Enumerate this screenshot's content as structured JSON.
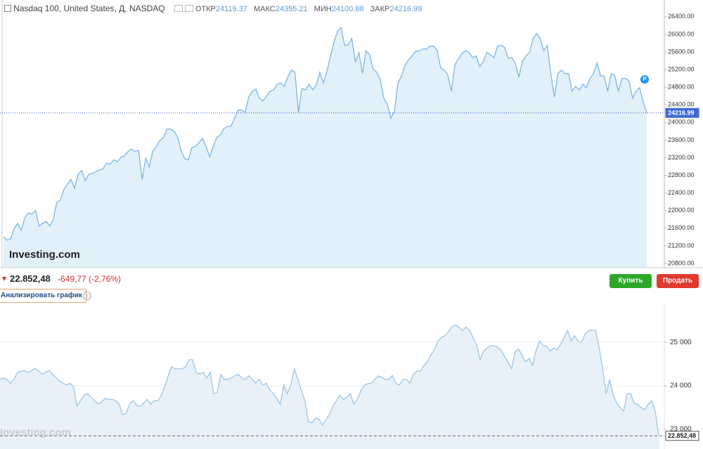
{
  "header": {
    "symbol": "Nasdaq 100, United States, Д, NASDAQ",
    "open_label": "ОТКР",
    "open": 24119.37,
    "high_label": "МАКС",
    "high": 24355.21,
    "low_label": "МИН",
    "low": 24100.88,
    "close_label": "ЗАКР",
    "close": 24216.99,
    "logo": "Investing.com"
  },
  "quote": {
    "price": "22.852,48",
    "change": "-649,77 (-2,76%)"
  },
  "buttons": {
    "buy": "Купить",
    "sell": "Продать",
    "analyze": "Анализировать график"
  },
  "watermark": "Investing.com",
  "chart_data": [
    {
      "type": "area",
      "color": "#7db6e6",
      "fill": "#e2f0fa",
      "grid": false,
      "ylim": [
        20720,
        26780
      ],
      "yticks": [
        {
          "value": 20800,
          "label": "20800.00"
        },
        {
          "value": 21200,
          "label": "21200.00"
        },
        {
          "value": 21600,
          "label": "21600.00"
        },
        {
          "value": 22000,
          "label": "22000.00"
        },
        {
          "value": 22400,
          "label": "22400.00"
        },
        {
          "value": 22800,
          "label": "22800.00"
        },
        {
          "value": 23200,
          "label": "23200.00"
        },
        {
          "value": 23600,
          "label": "23600.00"
        },
        {
          "value": 24000,
          "label": "24000.00"
        },
        {
          "value": 24400,
          "label": "24400.00"
        },
        {
          "value": 24800,
          "label": "24800.00"
        },
        {
          "value": 25200,
          "label": "25200.00"
        },
        {
          "value": 25600,
          "label": "25600.00"
        },
        {
          "value": 26000,
          "label": "26000.00"
        },
        {
          "value": 26400,
          "label": "26400.00"
        }
      ],
      "values": [
        21410,
        21330,
        21360,
        21600,
        21710,
        21550,
        21840,
        21950,
        21920,
        22000,
        21650,
        21710,
        21760,
        21650,
        21810,
        22190,
        22240,
        22480,
        22600,
        22710,
        22510,
        22830,
        22910,
        22680,
        22830,
        22840,
        22890,
        22920,
        22950,
        23080,
        23050,
        23150,
        23110,
        23210,
        23240,
        23340,
        23400,
        23340,
        23370,
        22710,
        23190,
        22990,
        23350,
        23460,
        23590,
        23660,
        23850,
        23850,
        23800,
        23670,
        23350,
        23180,
        23150,
        23430,
        23460,
        23540,
        23640,
        23460,
        23220,
        23460,
        23660,
        23720,
        23860,
        23910,
        23910,
        24100,
        24280,
        24280,
        24230,
        24580,
        24710,
        24760,
        24550,
        24490,
        24600,
        24710,
        24740,
        24870,
        24900,
        24820,
        25030,
        25190,
        25140,
        24230,
        24770,
        24740,
        24870,
        24740,
        24850,
        25140,
        24900,
        25160,
        25510,
        25830,
        26070,
        26150,
        25750,
        25760,
        25910,
        25380,
        25590,
        25110,
        25630,
        25540,
        25220,
        25140,
        24980,
        24550,
        24420,
        24100,
        24260,
        24900,
        25060,
        25300,
        25430,
        25510,
        25620,
        25620,
        25670,
        25670,
        25730,
        25730,
        25650,
        25240,
        25190,
        25090,
        24710,
        25310,
        25440,
        25570,
        25630,
        25590,
        25470,
        25510,
        25270,
        25380,
        25590,
        25540,
        25470,
        25730,
        25760,
        25700,
        25460,
        25470,
        25350,
        25030,
        25380,
        25510,
        25590,
        25910,
        26020,
        25910,
        25630,
        25750,
        25110,
        24580,
        25110,
        25190,
        25110,
        25110,
        24710,
        24820,
        24740,
        24870,
        24790,
        25000,
        25110,
        25350,
        25060,
        25060,
        24710,
        25110,
        25060,
        24710,
        25000,
        25000,
        24950,
        24550,
        24710,
        24790,
        24470,
        24216.99
      ]
    },
    {
      "type": "area",
      "color": "#9cc6e6",
      "fill": "#e9f1f8",
      "grid": true,
      "ylim": [
        22550,
        25760
      ],
      "yticks": [
        {
          "value": 23000,
          "label": "23 000"
        },
        {
          "value": 24000,
          "label": "24 000"
        },
        {
          "value": 25000,
          "label": "25 000"
        }
      ],
      "values": [
        24150,
        24180,
        24150,
        24060,
        24150,
        24310,
        24340,
        24350,
        24310,
        24350,
        24400,
        24340,
        24270,
        24310,
        24350,
        24270,
        24190,
        24110,
        24060,
        24020,
        24060,
        23980,
        23530,
        23660,
        23790,
        23820,
        23740,
        23660,
        23580,
        23630,
        23710,
        23690,
        23690,
        23660,
        23580,
        23340,
        23370,
        23580,
        23660,
        23560,
        23530,
        23600,
        23690,
        23580,
        23660,
        23660,
        23770,
        23980,
        24230,
        24440,
        24390,
        24390,
        24390,
        24440,
        24600,
        24600,
        24310,
        24270,
        24310,
        24180,
        24310,
        23820,
        23850,
        24260,
        24150,
        24150,
        24180,
        24230,
        24270,
        24180,
        24150,
        24230,
        24150,
        24060,
        24150,
        24020,
        24060,
        23900,
        23820,
        23710,
        23580,
        24020,
        23820,
        24020,
        24390,
        24150,
        23900,
        23660,
        23180,
        23150,
        23260,
        23240,
        23100,
        23210,
        23340,
        23530,
        23660,
        23790,
        23690,
        23740,
        23820,
        23580,
        23690,
        23890,
        24020,
        24050,
        24060,
        24150,
        24230,
        24190,
        24150,
        24150,
        24240,
        24060,
        24020,
        24150,
        24150,
        24060,
        24270,
        24340,
        24340,
        24470,
        24550,
        24710,
        24820,
        25030,
        25110,
        25150,
        25240,
        25350,
        25400,
        25350,
        25270,
        25350,
        25270,
        25110,
        24950,
        24600,
        24790,
        24870,
        24920,
        24920,
        24890,
        24820,
        24680,
        24550,
        24390,
        24790,
        24840,
        24710,
        24550,
        24630,
        24470,
        24820,
        25030,
        24920,
        24920,
        24790,
        24870,
        24820,
        24950,
        25110,
        25270,
        25030,
        25150,
        25030,
        25000,
        25190,
        25270,
        25270,
        25270,
        24870,
        24390,
        23820,
        24150,
        23790,
        23600,
        23500,
        23420,
        23820,
        23820,
        23600,
        23580,
        23500,
        23450,
        23580,
        23660,
        23420,
        22852.48
      ]
    }
  ]
}
